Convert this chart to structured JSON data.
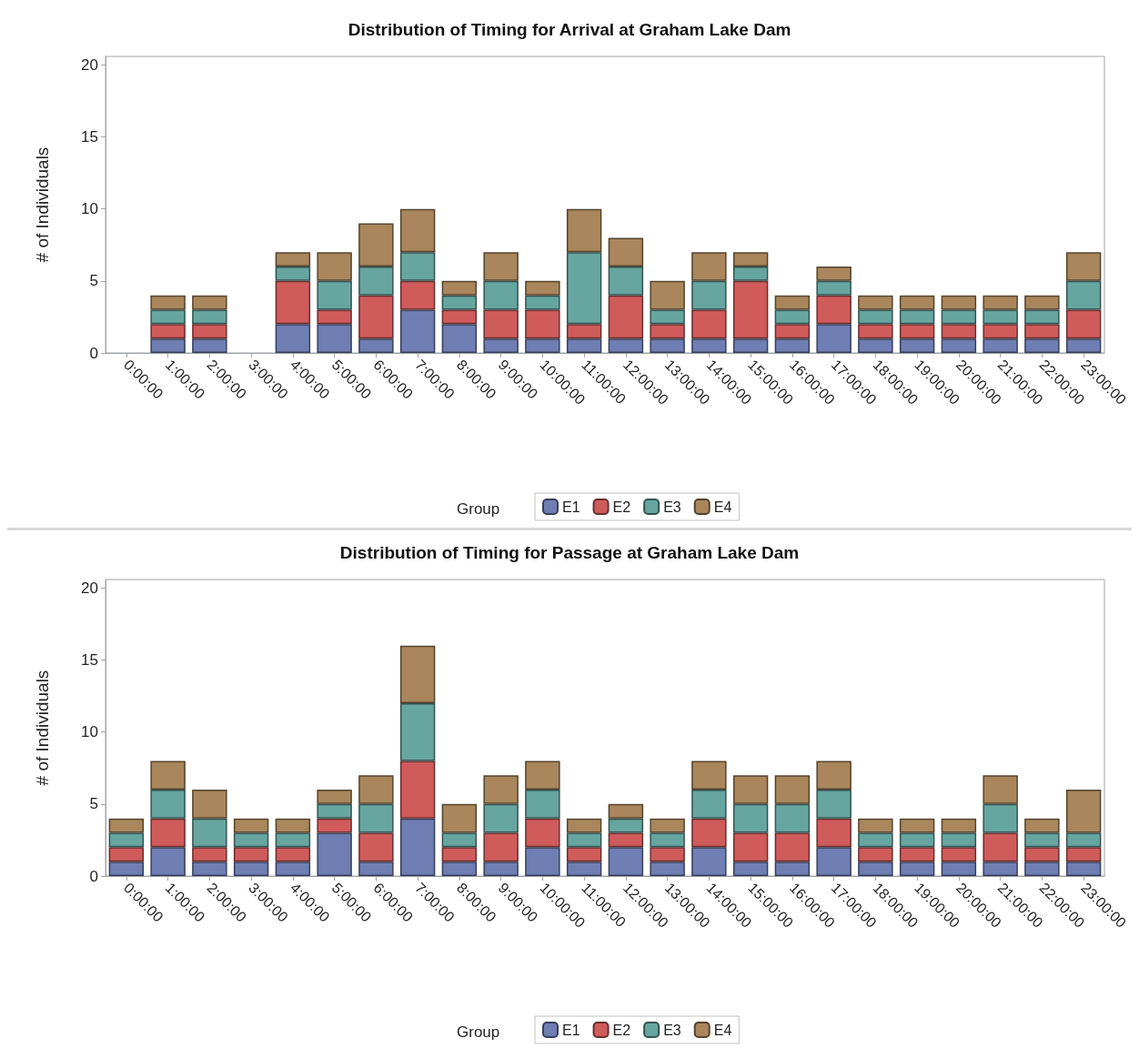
{
  "chart_data": [
    {
      "type": "bar",
      "title": "Distribution of Timing for Arrival at Graham Lake Dam",
      "ylabel": "# of Individuals",
      "legend_title": "Group",
      "stacked": true,
      "legend": "bottom",
      "grid": false,
      "categories": [
        "0:00:00",
        "1:00:00",
        "2:00:00",
        "3:00:00",
        "4:00:00",
        "5:00:00",
        "6:00:00",
        "7:00:00",
        "8:00:00",
        "9:00:00",
        "10:00:00",
        "11:00:00",
        "12:00:00",
        "13:00:00",
        "14:00:00",
        "15:00:00",
        "16:00:00",
        "17:00:00",
        "18:00:00",
        "19:00:00",
        "20:00:00",
        "21:00:00",
        "22:00:00",
        "23:00:00"
      ],
      "ylim": [
        0,
        20.6
      ],
      "yticks": [
        0,
        5,
        10,
        15,
        20
      ],
      "series": [
        {
          "name": "E1",
          "color": "#6f7eb3",
          "values": [
            0,
            1,
            1,
            0,
            2,
            2,
            1,
            3,
            2,
            1,
            1,
            1,
            1,
            1,
            1,
            1,
            1,
            2,
            1,
            1,
            1,
            1,
            1,
            1
          ]
        },
        {
          "name": "E2",
          "color": "#d05b5b",
          "values": [
            0,
            1,
            1,
            0,
            3,
            1,
            3,
            2,
            1,
            2,
            2,
            1,
            3,
            1,
            2,
            4,
            1,
            2,
            1,
            1,
            1,
            1,
            1,
            2
          ]
        },
        {
          "name": "E3",
          "color": "#66a5a0",
          "values": [
            0,
            1,
            1,
            0,
            1,
            2,
            2,
            2,
            1,
            2,
            1,
            5,
            2,
            1,
            2,
            1,
            1,
            1,
            1,
            1,
            1,
            1,
            1,
            2
          ]
        },
        {
          "name": "E4",
          "color": "#a9865b",
          "values": [
            0,
            1,
            1,
            0,
            1,
            2,
            3,
            3,
            1,
            2,
            1,
            3,
            2,
            2,
            2,
            1,
            1,
            1,
            1,
            1,
            1,
            1,
            1,
            2
          ]
        }
      ]
    },
    {
      "type": "bar",
      "title": "Distribution of Timing for Passage at Graham Lake Dam",
      "ylabel": "# of Individuals",
      "legend_title": "Group",
      "stacked": true,
      "legend": "bottom",
      "grid": false,
      "categories": [
        "0:00:00",
        "1:00:00",
        "2:00:00",
        "3:00:00",
        "4:00:00",
        "5:00:00",
        "6:00:00",
        "7:00:00",
        "8:00:00",
        "9:00:00",
        "10:00:00",
        "11:00:00",
        "12:00:00",
        "13:00:00",
        "14:00:00",
        "15:00:00",
        "16:00:00",
        "17:00:00",
        "18:00:00",
        "19:00:00",
        "20:00:00",
        "21:00:00",
        "22:00:00",
        "23:00:00"
      ],
      "ylim": [
        0,
        20.6
      ],
      "yticks": [
        0,
        5,
        10,
        15,
        20
      ],
      "series": [
        {
          "name": "E1",
          "color": "#6f7eb3",
          "values": [
            1,
            2,
            1,
            1,
            1,
            3,
            1,
            4,
            1,
            1,
            2,
            1,
            2,
            1,
            2,
            1,
            1,
            2,
            1,
            1,
            1,
            1,
            1,
            1
          ]
        },
        {
          "name": "E2",
          "color": "#d05b5b",
          "values": [
            1,
            2,
            1,
            1,
            1,
            1,
            2,
            4,
            1,
            2,
            2,
            1,
            1,
            1,
            2,
            2,
            2,
            2,
            1,
            1,
            1,
            2,
            1,
            1
          ]
        },
        {
          "name": "E3",
          "color": "#66a5a0",
          "values": [
            1,
            2,
            2,
            1,
            1,
            1,
            2,
            4,
            1,
            2,
            2,
            1,
            1,
            1,
            2,
            2,
            2,
            2,
            1,
            1,
            1,
            2,
            1,
            1
          ]
        },
        {
          "name": "E4",
          "color": "#a9865b",
          "values": [
            1,
            2,
            2,
            1,
            1,
            1,
            2,
            4,
            2,
            2,
            2,
            1,
            1,
            1,
            2,
            2,
            2,
            2,
            1,
            1,
            1,
            2,
            1,
            3
          ]
        }
      ]
    }
  ]
}
